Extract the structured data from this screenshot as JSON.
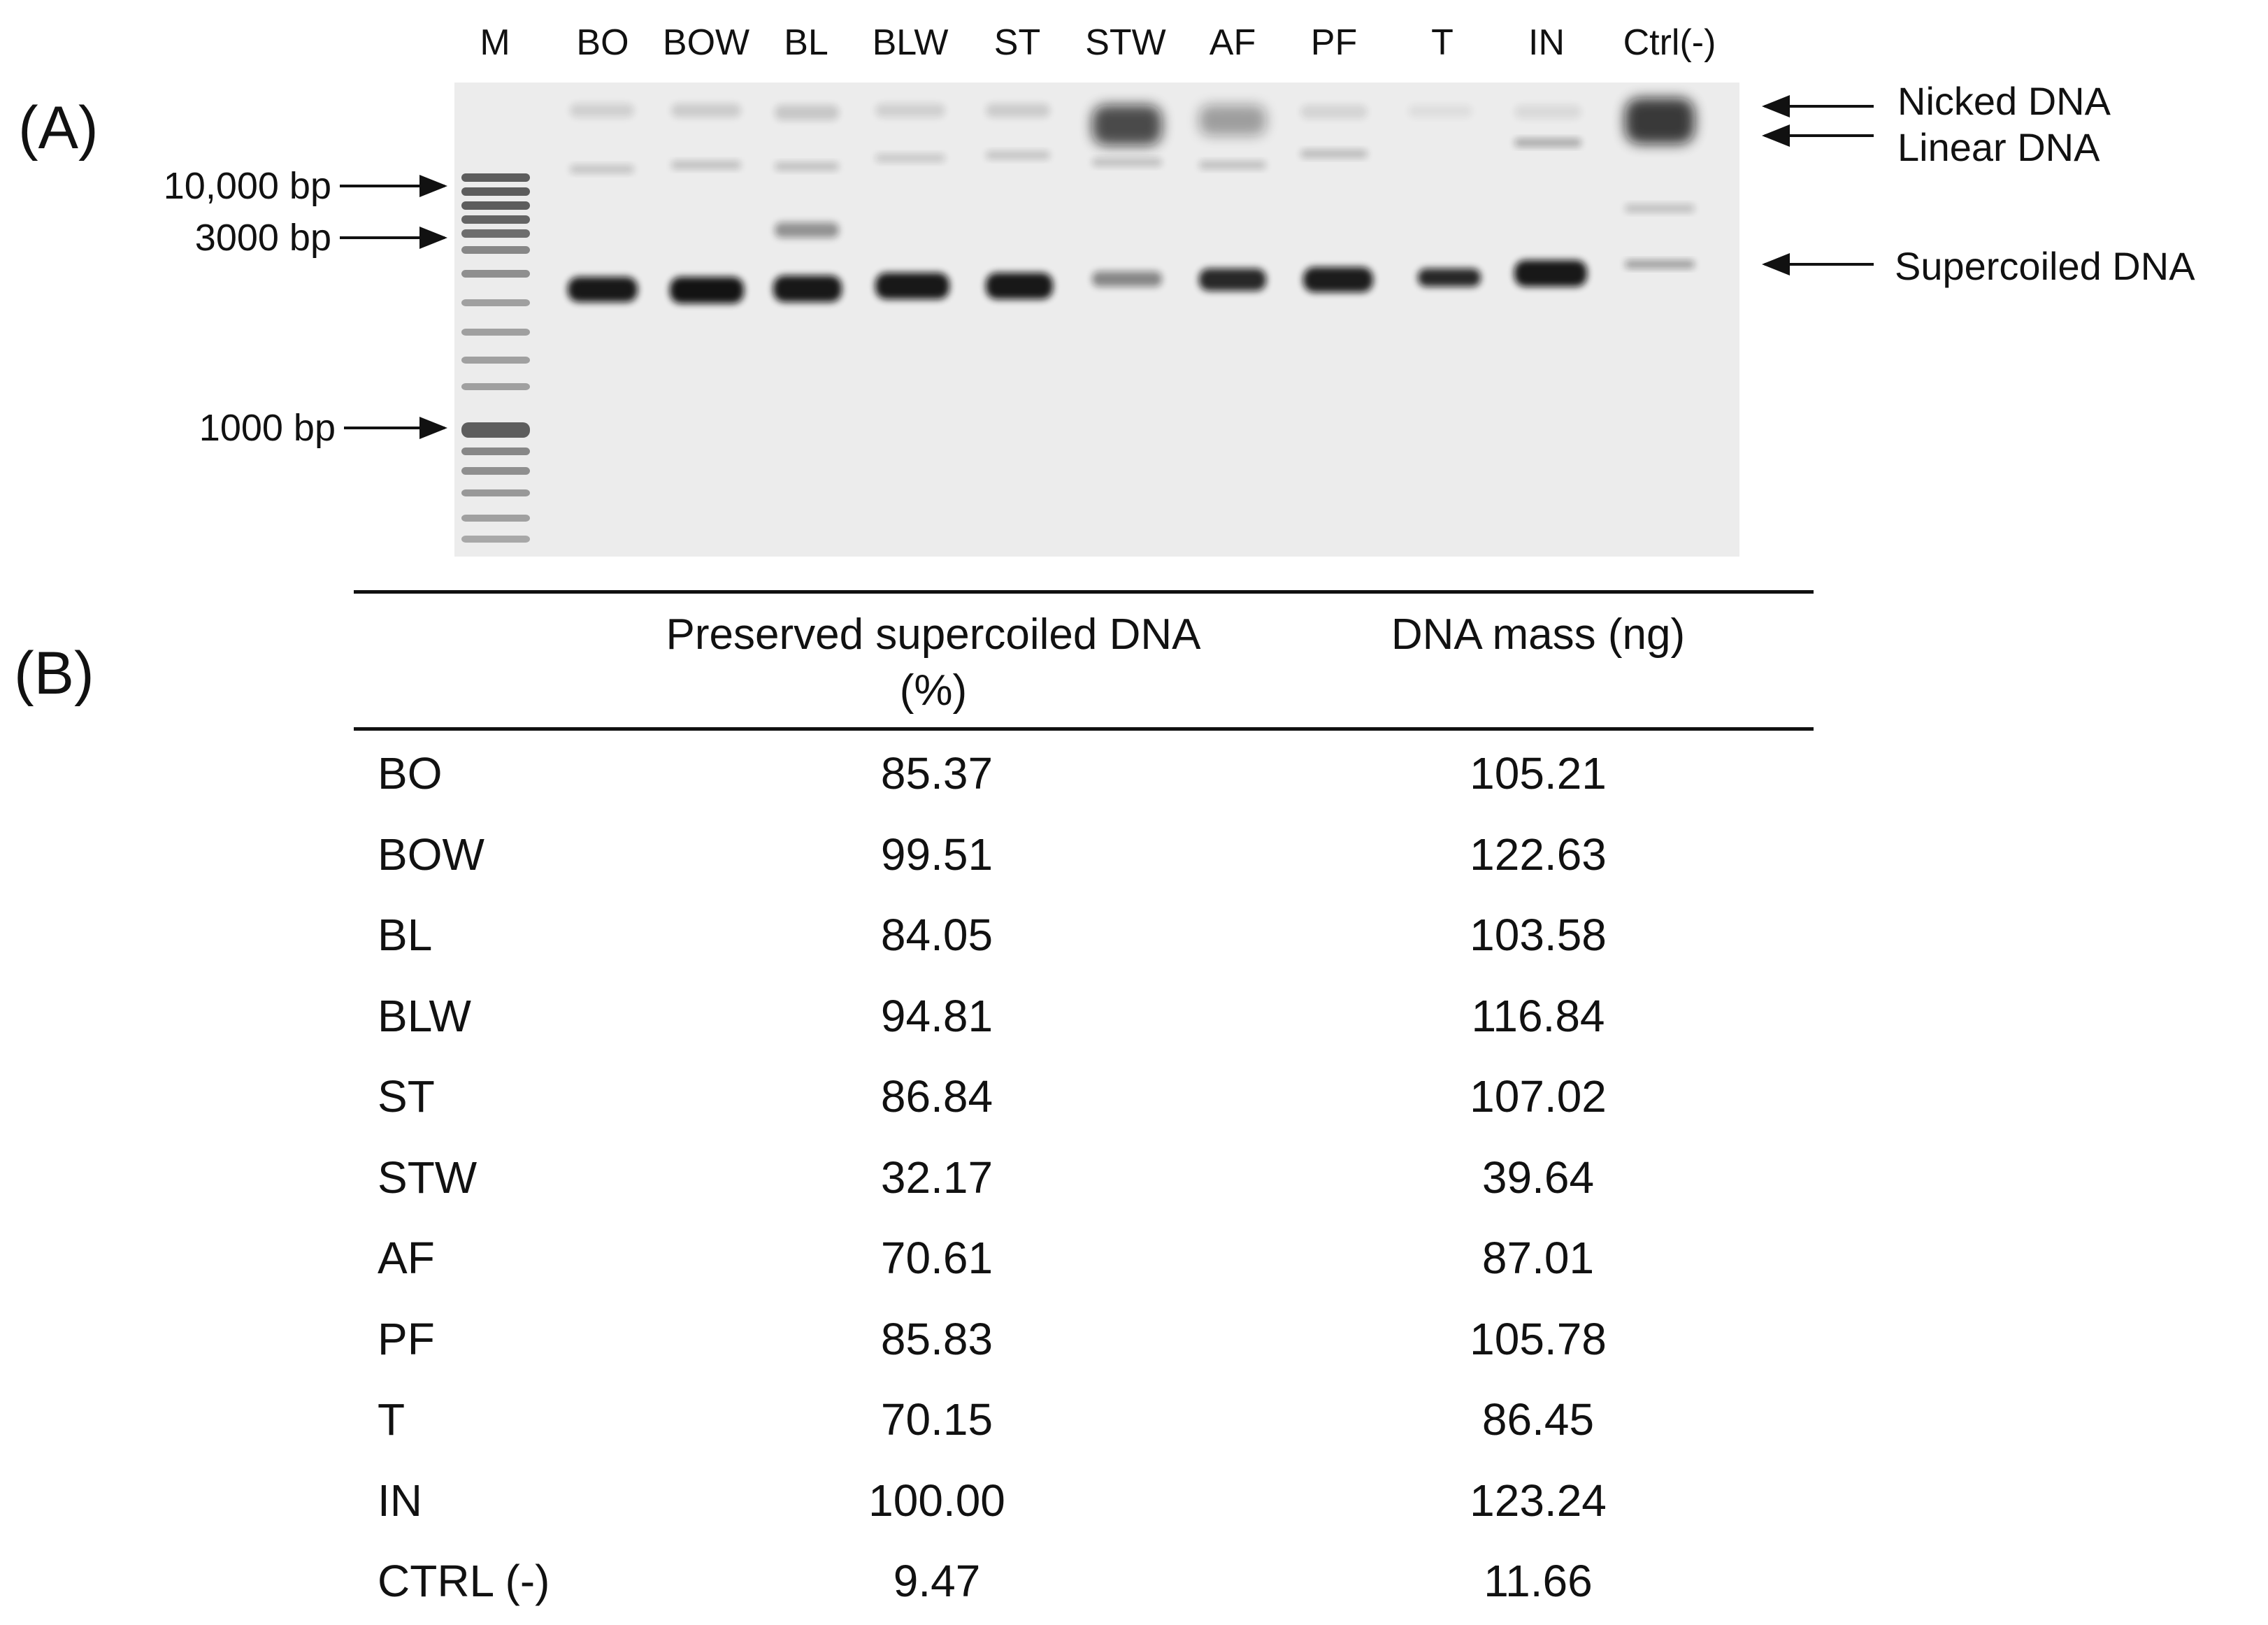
{
  "panels": {
    "a": "(A)",
    "b": "(B)"
  },
  "gel": {
    "lanes": [
      "M",
      "BO",
      "BOW",
      "BL",
      "BLW",
      "ST",
      "STW",
      "AF",
      "PF",
      "T",
      "IN",
      "Ctrl(-)"
    ],
    "ladder_labels": [
      "10,000 bp",
      "3000 bp",
      "1000 bp"
    ],
    "band_labels": [
      "Nicked DNA",
      "Linear DNA",
      "Supercoiled DNA"
    ]
  },
  "table": {
    "headers": [
      "",
      "Preserved supercoiled DNA (%)",
      "DNA mass (ng)"
    ],
    "header_lines": {
      "col1_line1": "Preserved supercoiled DNA",
      "col1_line2": "(%)",
      "col2": "DNA mass (ng)"
    },
    "rows": [
      {
        "sample": "BO",
        "preserved": "85.37",
        "mass": "105.21"
      },
      {
        "sample": "BOW",
        "preserved": "99.51",
        "mass": "122.63"
      },
      {
        "sample": "BL",
        "preserved": "84.05",
        "mass": "103.58"
      },
      {
        "sample": "BLW",
        "preserved": "94.81",
        "mass": "116.84"
      },
      {
        "sample": "ST",
        "preserved": "86.84",
        "mass": "107.02"
      },
      {
        "sample": "STW",
        "preserved": "32.17",
        "mass": "39.64"
      },
      {
        "sample": "AF",
        "preserved": "70.61",
        "mass": "87.01"
      },
      {
        "sample": "PF",
        "preserved": "85.83",
        "mass": "105.78"
      },
      {
        "sample": "T",
        "preserved": "70.15",
        "mass": "86.45"
      },
      {
        "sample": "IN",
        "preserved": "100.00",
        "mass": "123.24"
      },
      {
        "sample": "CTRL (-)",
        "preserved": "9.47",
        "mass": "11.66"
      }
    ]
  }
}
